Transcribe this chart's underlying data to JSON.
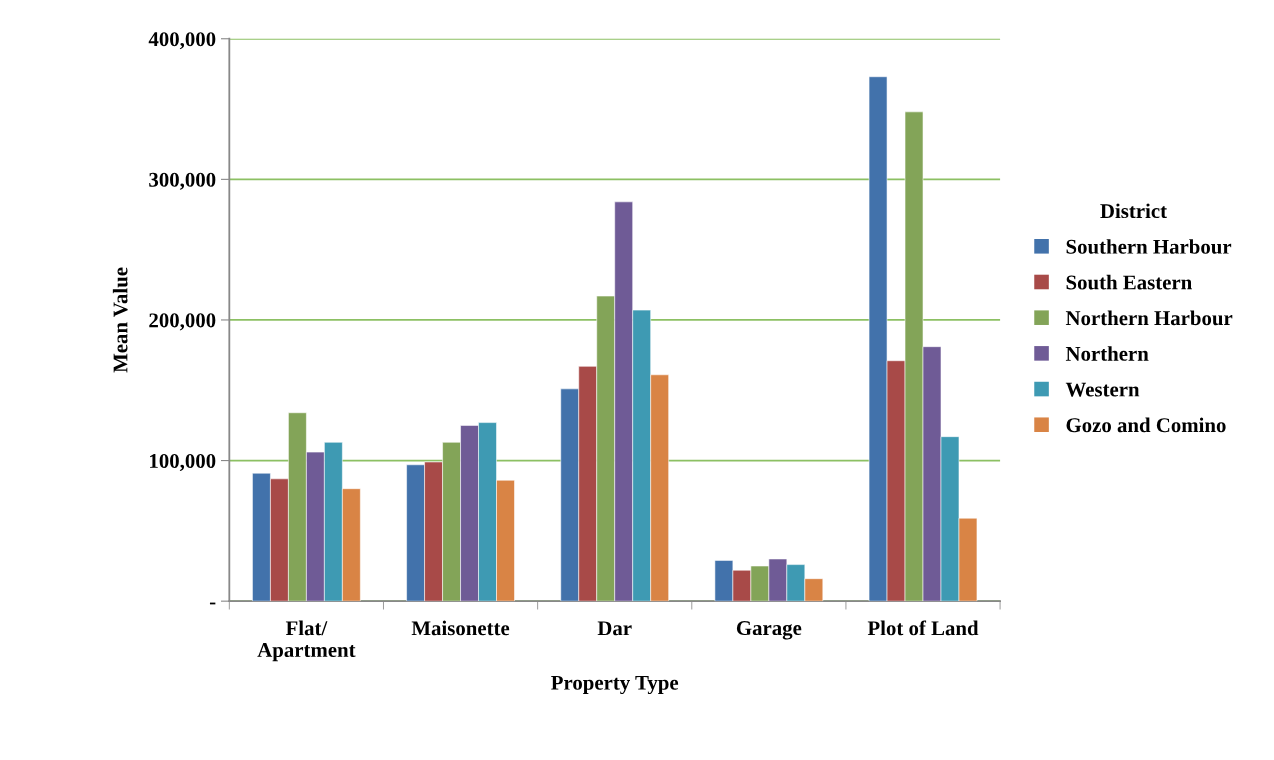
{
  "chart_data": {
    "type": "bar",
    "xlabel": "Property Type",
    "ylabel": "Mean Value",
    "legend_title": "District",
    "categories": [
      "Flat/\nApartment",
      "Maisonette",
      "Dar",
      "Garage",
      "Plot of Land"
    ],
    "series": [
      {
        "name": "Southern Harbour",
        "color": "#4272ab",
        "values": [
          91000,
          97000,
          151000,
          29000,
          373000
        ]
      },
      {
        "name": "South Eastern",
        "color": "#a84a48",
        "values": [
          87000,
          99000,
          167000,
          22000,
          171000
        ]
      },
      {
        "name": "Northern Harbour",
        "color": "#83a458",
        "values": [
          134000,
          113000,
          217000,
          25000,
          348000
        ]
      },
      {
        "name": "Northern",
        "color": "#6f5b96",
        "values": [
          106000,
          125000,
          284000,
          30000,
          181000
        ]
      },
      {
        "name": "Western",
        "color": "#3e9ab3",
        "values": [
          113000,
          127000,
          207000,
          26000,
          117000
        ]
      },
      {
        "name": "Gozo and Comino",
        "color": "#d98445",
        "values": [
          80000,
          86000,
          161000,
          16000,
          59000
        ]
      }
    ],
    "ylim": [
      0,
      400000
    ],
    "yticks": [
      {
        "value": 0,
        "label": "-"
      },
      {
        "value": 100000,
        "label": "100,000"
      },
      {
        "value": 200000,
        "label": "200,000"
      },
      {
        "value": 300000,
        "label": "300,000"
      },
      {
        "value": 400000,
        "label": "400,000"
      }
    ],
    "grid": "y",
    "legend": "right"
  }
}
